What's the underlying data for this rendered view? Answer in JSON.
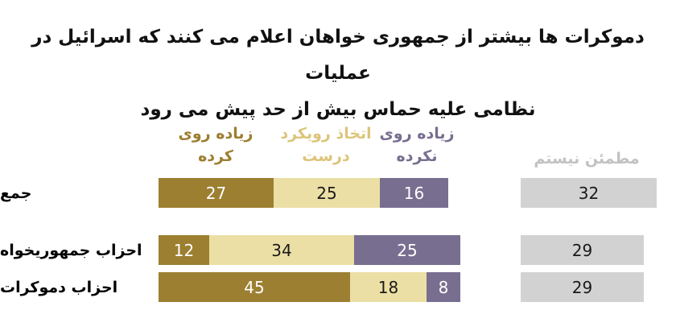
{
  "title": {
    "line1": "دموکرات ها بیشتر از جمهوری خواهان اعلام می کنند که اسرائیل در عملیات",
    "line2": "نظامی علیه حماس بیش از حد پیش می رود"
  },
  "colors": {
    "gone_too_far": "#9c7f31",
    "right_approach": "#ecdfa5",
    "not_gone_too_far": "#786e90",
    "not_sure": "#d2d2d2",
    "title_text": "#111111",
    "white_text": "#ffffff",
    "dark_text": "#1a1a1a",
    "legend_tan_text": "#dcc57a",
    "legend_gray_text": "#c2c2c2"
  },
  "chart_data": {
    "type": "bar",
    "stacked": true,
    "orientation": "horizontal",
    "legend_position": "top",
    "title": "دموکرات ها بیشتر از جمهوری خواهان اعلام می کنند که اسرائیل در عملیات نظامی علیه حماس بیش از حد پیش می رود",
    "categories": [
      "جمع",
      "احزاب جمهوریخواه",
      "احزاب دموکرات"
    ],
    "series": [
      {
        "key": "gone-too-far",
        "name": "زیاده روی کرده",
        "legend_lines": [
          "زیاده روی",
          "کرده"
        ],
        "color": "#9c7f31",
        "value_text_color": "#ffffff",
        "legend_text_color": "#9c7f31",
        "values": [
          27,
          12,
          45
        ]
      },
      {
        "key": "right-approach",
        "name": "اتخاذ رویکرد درست",
        "legend_lines": [
          "اتخاذ رویکرد",
          "درست"
        ],
        "color": "#ecdfa5",
        "value_text_color": "#1a1a1a",
        "legend_text_color": "#dcc57a",
        "values": [
          25,
          34,
          18
        ]
      },
      {
        "key": "not-gone-too-far",
        "name": "زیاده روی نکرده",
        "legend_lines": [
          "زیاده روی",
          "نکرده"
        ],
        "color": "#786e90",
        "value_text_color": "#ffffff",
        "legend_text_color": "#786e90",
        "values": [
          16,
          25,
          8
        ]
      },
      {
        "key": "not-sure",
        "name": "مطمئن نیستم",
        "legend_lines": [
          "مطمئن نیستم"
        ],
        "color": "#d2d2d2",
        "value_text_color": "#1a1a1a",
        "legend_text_color": "#c2c2c2",
        "detached": true,
        "values": [
          32,
          29,
          29
        ]
      }
    ]
  }
}
